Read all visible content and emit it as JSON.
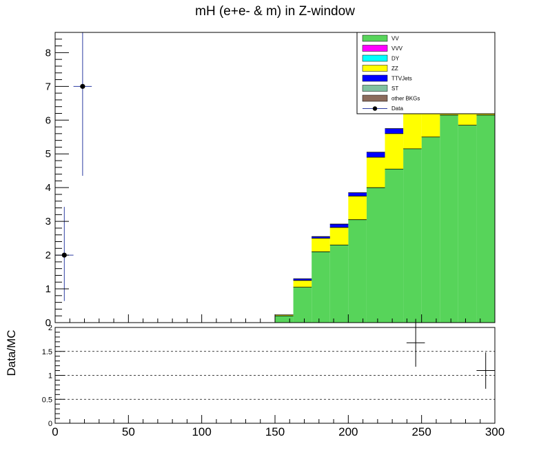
{
  "chart_data": [
    {
      "type": "bar",
      "title": "mH (e+e- & m) in Z-window",
      "xlabel": "",
      "ylabel": "",
      "xlim": [
        0,
        300
      ],
      "ylim": [
        0,
        8.6
      ],
      "bin_width": 12.5,
      "bin_edges": [
        0,
        12.5,
        25,
        37.5,
        50,
        62.5,
        75,
        87.5,
        100,
        112.5,
        125,
        137.5,
        150,
        162.5,
        175,
        187.5,
        200,
        212.5,
        225,
        237.5,
        250,
        262.5,
        275,
        287.5,
        300
      ],
      "x_ticks": [
        0,
        50,
        100,
        150,
        200,
        250,
        300
      ],
      "x_tick_labels": [
        "0",
        "50",
        "100",
        "150",
        "200",
        "250",
        "300"
      ],
      "y_ticks": [
        0,
        1,
        2,
        3,
        4,
        5,
        6,
        7,
        8
      ],
      "y_tick_labels": [
        "0",
        "1",
        "2",
        "3",
        "4",
        "5",
        "6",
        "7",
        "8"
      ],
      "legend": {
        "position": "top-right",
        "entries": [
          {
            "label": "VV",
            "color": "#57d45a",
            "style": "fill"
          },
          {
            "label": "VVV",
            "color": "#ff00ff",
            "style": "fill"
          },
          {
            "label": "DY",
            "color": "#00ffff",
            "style": "fill"
          },
          {
            "label": "ZZ",
            "color": "#ffff00",
            "style": "fill"
          },
          {
            "label": "TTVJets",
            "color": "#0000ff",
            "style": "fill"
          },
          {
            "label": "ST",
            "color": "#80c0a0",
            "style": "fill"
          },
          {
            "label": "other BKGs",
            "color": "#8b6b5c",
            "style": "fill"
          },
          {
            "label": "Data",
            "color": "#000000",
            "style": "marker"
          }
        ]
      },
      "series": [
        {
          "name": "VV",
          "color": "#57d45a",
          "values": [
            0,
            0,
            0,
            0,
            0,
            0,
            0,
            0,
            0,
            0,
            0,
            0,
            0.2,
            1.05,
            2.1,
            2.3,
            3.05,
            4.0,
            4.55,
            5.15,
            5.5,
            6.15,
            5.85,
            6.15
          ]
        },
        {
          "name": "ZZ",
          "color": "#ffff00",
          "values": [
            0,
            0,
            0,
            0,
            0,
            0,
            0,
            0,
            0,
            0,
            0,
            0,
            0.03,
            0.2,
            0.4,
            0.52,
            0.7,
            0.9,
            1.05,
            1.3,
            1.1,
            1.2,
            0.35,
            1.0
          ]
        },
        {
          "name": "TTVJets",
          "color": "#0000ff",
          "values": [
            0,
            0,
            0,
            0,
            0,
            0,
            0,
            0,
            0,
            0,
            0,
            0,
            0.0,
            0.05,
            0.05,
            0.1,
            0.1,
            0.15,
            0.15,
            0.15,
            0.05,
            0.1,
            0.05,
            0.1
          ]
        }
      ],
      "data_points": [
        {
          "name": "Data",
          "x": 6.25,
          "y": 2,
          "yerr_low": 1.36,
          "yerr_high": 1.43
        },
        {
          "name": "Data",
          "x": 18.75,
          "y": 7,
          "yerr_low": 2.65,
          "yerr_high": 3.3
        }
      ]
    },
    {
      "type": "scatter",
      "xlabel": "",
      "ylabel": "Data/MC",
      "xlim": [
        0,
        300
      ],
      "ylim": [
        0,
        2
      ],
      "x_ticks": [
        0,
        50,
        100,
        150,
        200,
        250,
        300
      ],
      "x_tick_labels": [
        "0",
        "50",
        "100",
        "150",
        "200",
        "250",
        "300"
      ],
      "y_ticks": [
        0,
        0.5,
        1,
        1.5,
        2
      ],
      "y_tick_labels": [
        "0",
        "0.5",
        "1",
        "1.5",
        "2"
      ],
      "reference_lines": [
        0.5,
        1,
        1.5
      ],
      "grid": false,
      "points": [
        {
          "x": 246,
          "y": 1.68,
          "xerr": 6.25,
          "yerr_low": 0.5,
          "yerr_high": 0.5
        },
        {
          "x": 293.75,
          "y": 1.1,
          "xerr": 6.25,
          "yerr_low": 0.38,
          "yerr_high": 0.38
        }
      ]
    }
  ]
}
